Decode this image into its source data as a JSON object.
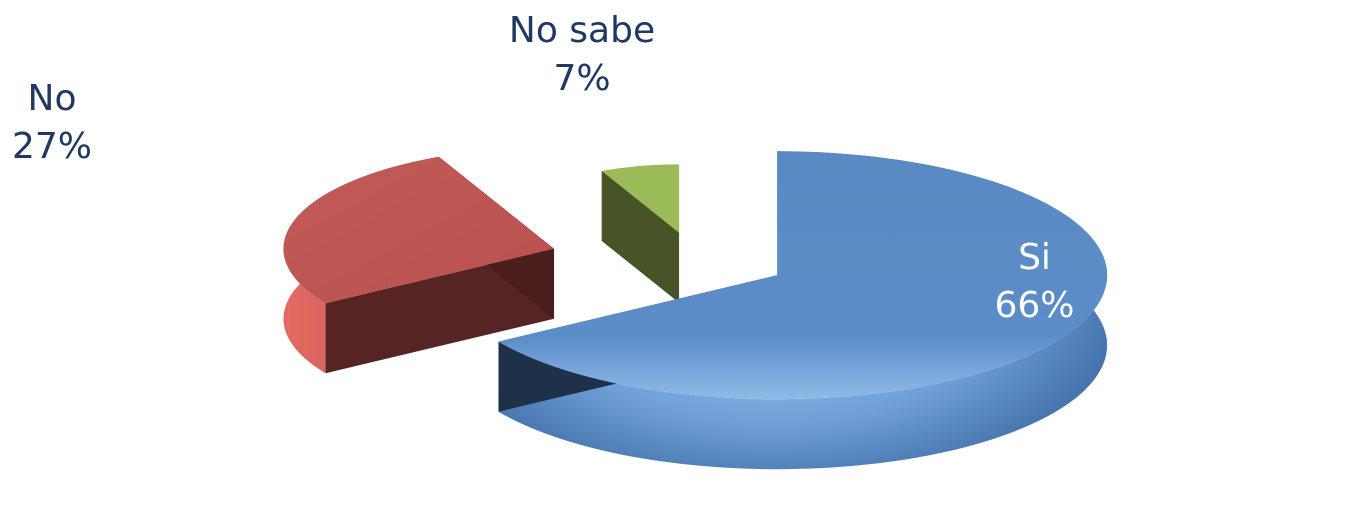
{
  "chart_data": {
    "type": "pie",
    "style": "3d-exploded",
    "title": "",
    "slices": [
      {
        "label": "Si",
        "value": 66,
        "percent_label": "66%",
        "color": "#4f81bd",
        "label_color": "#ffffff"
      },
      {
        "label": "No",
        "value": 27,
        "percent_label": "27%",
        "color": "#c0504d",
        "label_color": "#1f3864"
      },
      {
        "label": "No sabe",
        "value": 7,
        "percent_label": "7%",
        "color": "#9bbb59",
        "label_color": "#1f3864"
      }
    ],
    "legend": "none"
  }
}
